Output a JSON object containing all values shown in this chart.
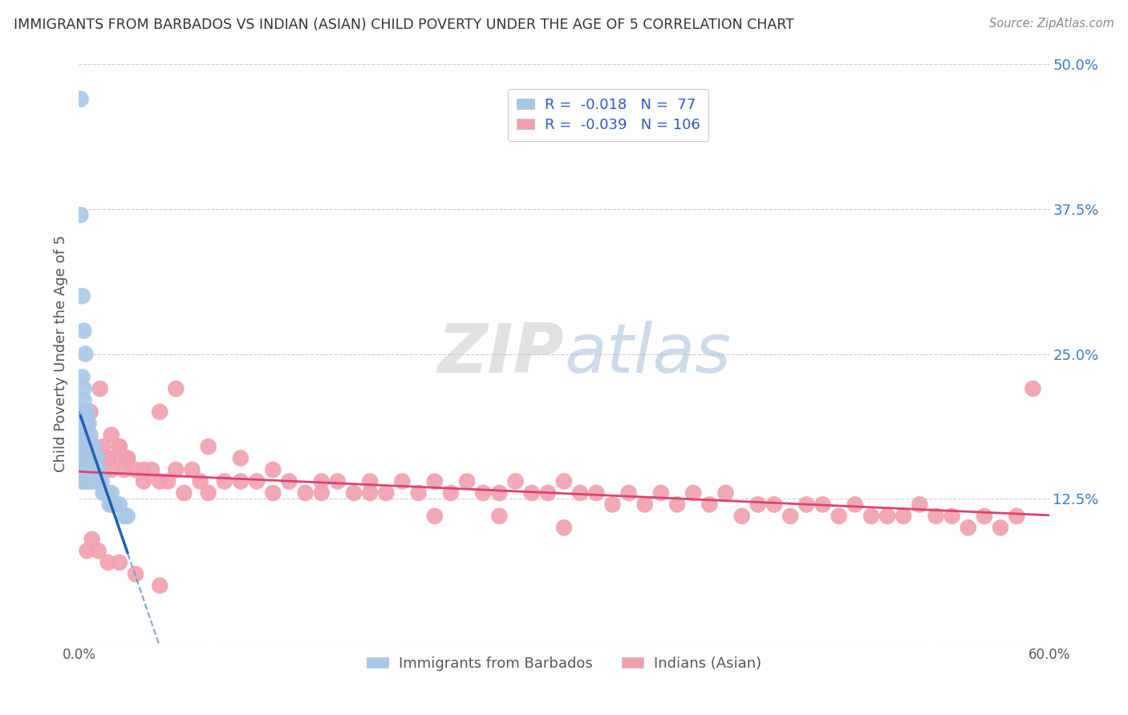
{
  "title": "IMMIGRANTS FROM BARBADOS VS INDIAN (ASIAN) CHILD POVERTY UNDER THE AGE OF 5 CORRELATION CHART",
  "source": "Source: ZipAtlas.com",
  "ylabel": "Child Poverty Under the Age of 5",
  "xlim": [
    0.0,
    0.6
  ],
  "ylim": [
    0.0,
    0.5
  ],
  "xticks": [
    0.0,
    0.1,
    0.2,
    0.3,
    0.4,
    0.5,
    0.6
  ],
  "yticks": [
    0.0,
    0.125,
    0.25,
    0.375,
    0.5
  ],
  "ytick_labels": [
    "",
    "12.5%",
    "25.0%",
    "37.5%",
    "50.0%"
  ],
  "xtick_labels": [
    "0.0%",
    "",
    "",
    "",
    "",
    "",
    "60.0%"
  ],
  "barbados_R": "-0.018",
  "barbados_N": "77",
  "indian_R": "-0.039",
  "indian_N": "106",
  "barbados_color": "#a8c8e8",
  "barbados_line_color": "#2060b0",
  "barbados_dash_color": "#6090c8",
  "indian_color": "#f0a0b0",
  "indian_line_color": "#e04070",
  "background_color": "#ffffff",
  "grid_color": "#cccccc",
  "title_color": "#333333",
  "legend_value_color": "#3355cc",
  "legend_label_color": "#333333",
  "watermark_zip_color": "#c8c8c8",
  "watermark_atlas_color": "#a0b8d8",
  "barbados_x": [
    0.001,
    0.001,
    0.001,
    0.002,
    0.002,
    0.002,
    0.002,
    0.002,
    0.002,
    0.002,
    0.003,
    0.003,
    0.003,
    0.003,
    0.003,
    0.003,
    0.003,
    0.004,
    0.004,
    0.004,
    0.004,
    0.004,
    0.004,
    0.004,
    0.004,
    0.005,
    0.005,
    0.005,
    0.005,
    0.005,
    0.005,
    0.005,
    0.005,
    0.005,
    0.006,
    0.006,
    0.006,
    0.006,
    0.006,
    0.007,
    0.007,
    0.007,
    0.007,
    0.007,
    0.008,
    0.008,
    0.008,
    0.009,
    0.009,
    0.009,
    0.01,
    0.01,
    0.01,
    0.011,
    0.011,
    0.012,
    0.012,
    0.013,
    0.014,
    0.015,
    0.016,
    0.017,
    0.018,
    0.019,
    0.02,
    0.021,
    0.022,
    0.025,
    0.028,
    0.03,
    0.001,
    0.002,
    0.002,
    0.003,
    0.003,
    0.003,
    0.004
  ],
  "barbados_y": [
    0.47,
    0.2,
    0.15,
    0.2,
    0.18,
    0.17,
    0.16,
    0.16,
    0.15,
    0.14,
    0.19,
    0.18,
    0.17,
    0.17,
    0.16,
    0.15,
    0.15,
    0.19,
    0.18,
    0.17,
    0.16,
    0.15,
    0.15,
    0.14,
    0.14,
    0.2,
    0.19,
    0.18,
    0.17,
    0.16,
    0.16,
    0.15,
    0.15,
    0.14,
    0.19,
    0.18,
    0.17,
    0.16,
    0.15,
    0.18,
    0.17,
    0.16,
    0.15,
    0.14,
    0.17,
    0.16,
    0.15,
    0.17,
    0.16,
    0.15,
    0.16,
    0.15,
    0.14,
    0.16,
    0.15,
    0.15,
    0.14,
    0.14,
    0.14,
    0.13,
    0.13,
    0.13,
    0.13,
    0.12,
    0.13,
    0.12,
    0.12,
    0.12,
    0.11,
    0.11,
    0.37,
    0.3,
    0.23,
    0.27,
    0.22,
    0.21,
    0.25
  ],
  "indian_x": [
    0.002,
    0.003,
    0.004,
    0.005,
    0.006,
    0.007,
    0.008,
    0.01,
    0.012,
    0.015,
    0.018,
    0.02,
    0.022,
    0.025,
    0.028,
    0.03,
    0.035,
    0.04,
    0.045,
    0.05,
    0.055,
    0.06,
    0.065,
    0.07,
    0.075,
    0.08,
    0.09,
    0.1,
    0.11,
    0.12,
    0.13,
    0.14,
    0.15,
    0.16,
    0.17,
    0.18,
    0.19,
    0.2,
    0.21,
    0.22,
    0.23,
    0.24,
    0.25,
    0.26,
    0.27,
    0.28,
    0.29,
    0.3,
    0.31,
    0.32,
    0.33,
    0.34,
    0.35,
    0.36,
    0.37,
    0.38,
    0.39,
    0.4,
    0.41,
    0.42,
    0.43,
    0.44,
    0.45,
    0.46,
    0.47,
    0.48,
    0.49,
    0.5,
    0.51,
    0.52,
    0.53,
    0.54,
    0.55,
    0.56,
    0.57,
    0.58,
    0.59,
    0.003,
    0.005,
    0.007,
    0.01,
    0.013,
    0.016,
    0.02,
    0.025,
    0.03,
    0.04,
    0.05,
    0.06,
    0.08,
    0.1,
    0.12,
    0.15,
    0.18,
    0.22,
    0.26,
    0.3,
    0.005,
    0.008,
    0.012,
    0.018,
    0.025,
    0.035,
    0.05
  ],
  "indian_y": [
    0.17,
    0.18,
    0.16,
    0.17,
    0.15,
    0.16,
    0.15,
    0.16,
    0.15,
    0.17,
    0.16,
    0.18,
    0.16,
    0.17,
    0.15,
    0.16,
    0.15,
    0.14,
    0.15,
    0.14,
    0.14,
    0.15,
    0.13,
    0.15,
    0.14,
    0.13,
    0.14,
    0.14,
    0.14,
    0.13,
    0.14,
    0.13,
    0.13,
    0.14,
    0.13,
    0.14,
    0.13,
    0.14,
    0.13,
    0.14,
    0.13,
    0.14,
    0.13,
    0.13,
    0.14,
    0.13,
    0.13,
    0.14,
    0.13,
    0.13,
    0.12,
    0.13,
    0.12,
    0.13,
    0.12,
    0.13,
    0.12,
    0.13,
    0.11,
    0.12,
    0.12,
    0.11,
    0.12,
    0.12,
    0.11,
    0.12,
    0.11,
    0.11,
    0.11,
    0.12,
    0.11,
    0.11,
    0.1,
    0.11,
    0.1,
    0.11,
    0.22,
    0.14,
    0.18,
    0.2,
    0.17,
    0.22,
    0.16,
    0.15,
    0.17,
    0.16,
    0.15,
    0.2,
    0.22,
    0.17,
    0.16,
    0.15,
    0.14,
    0.13,
    0.11,
    0.11,
    0.1,
    0.08,
    0.09,
    0.08,
    0.07,
    0.07,
    0.06,
    0.05
  ]
}
